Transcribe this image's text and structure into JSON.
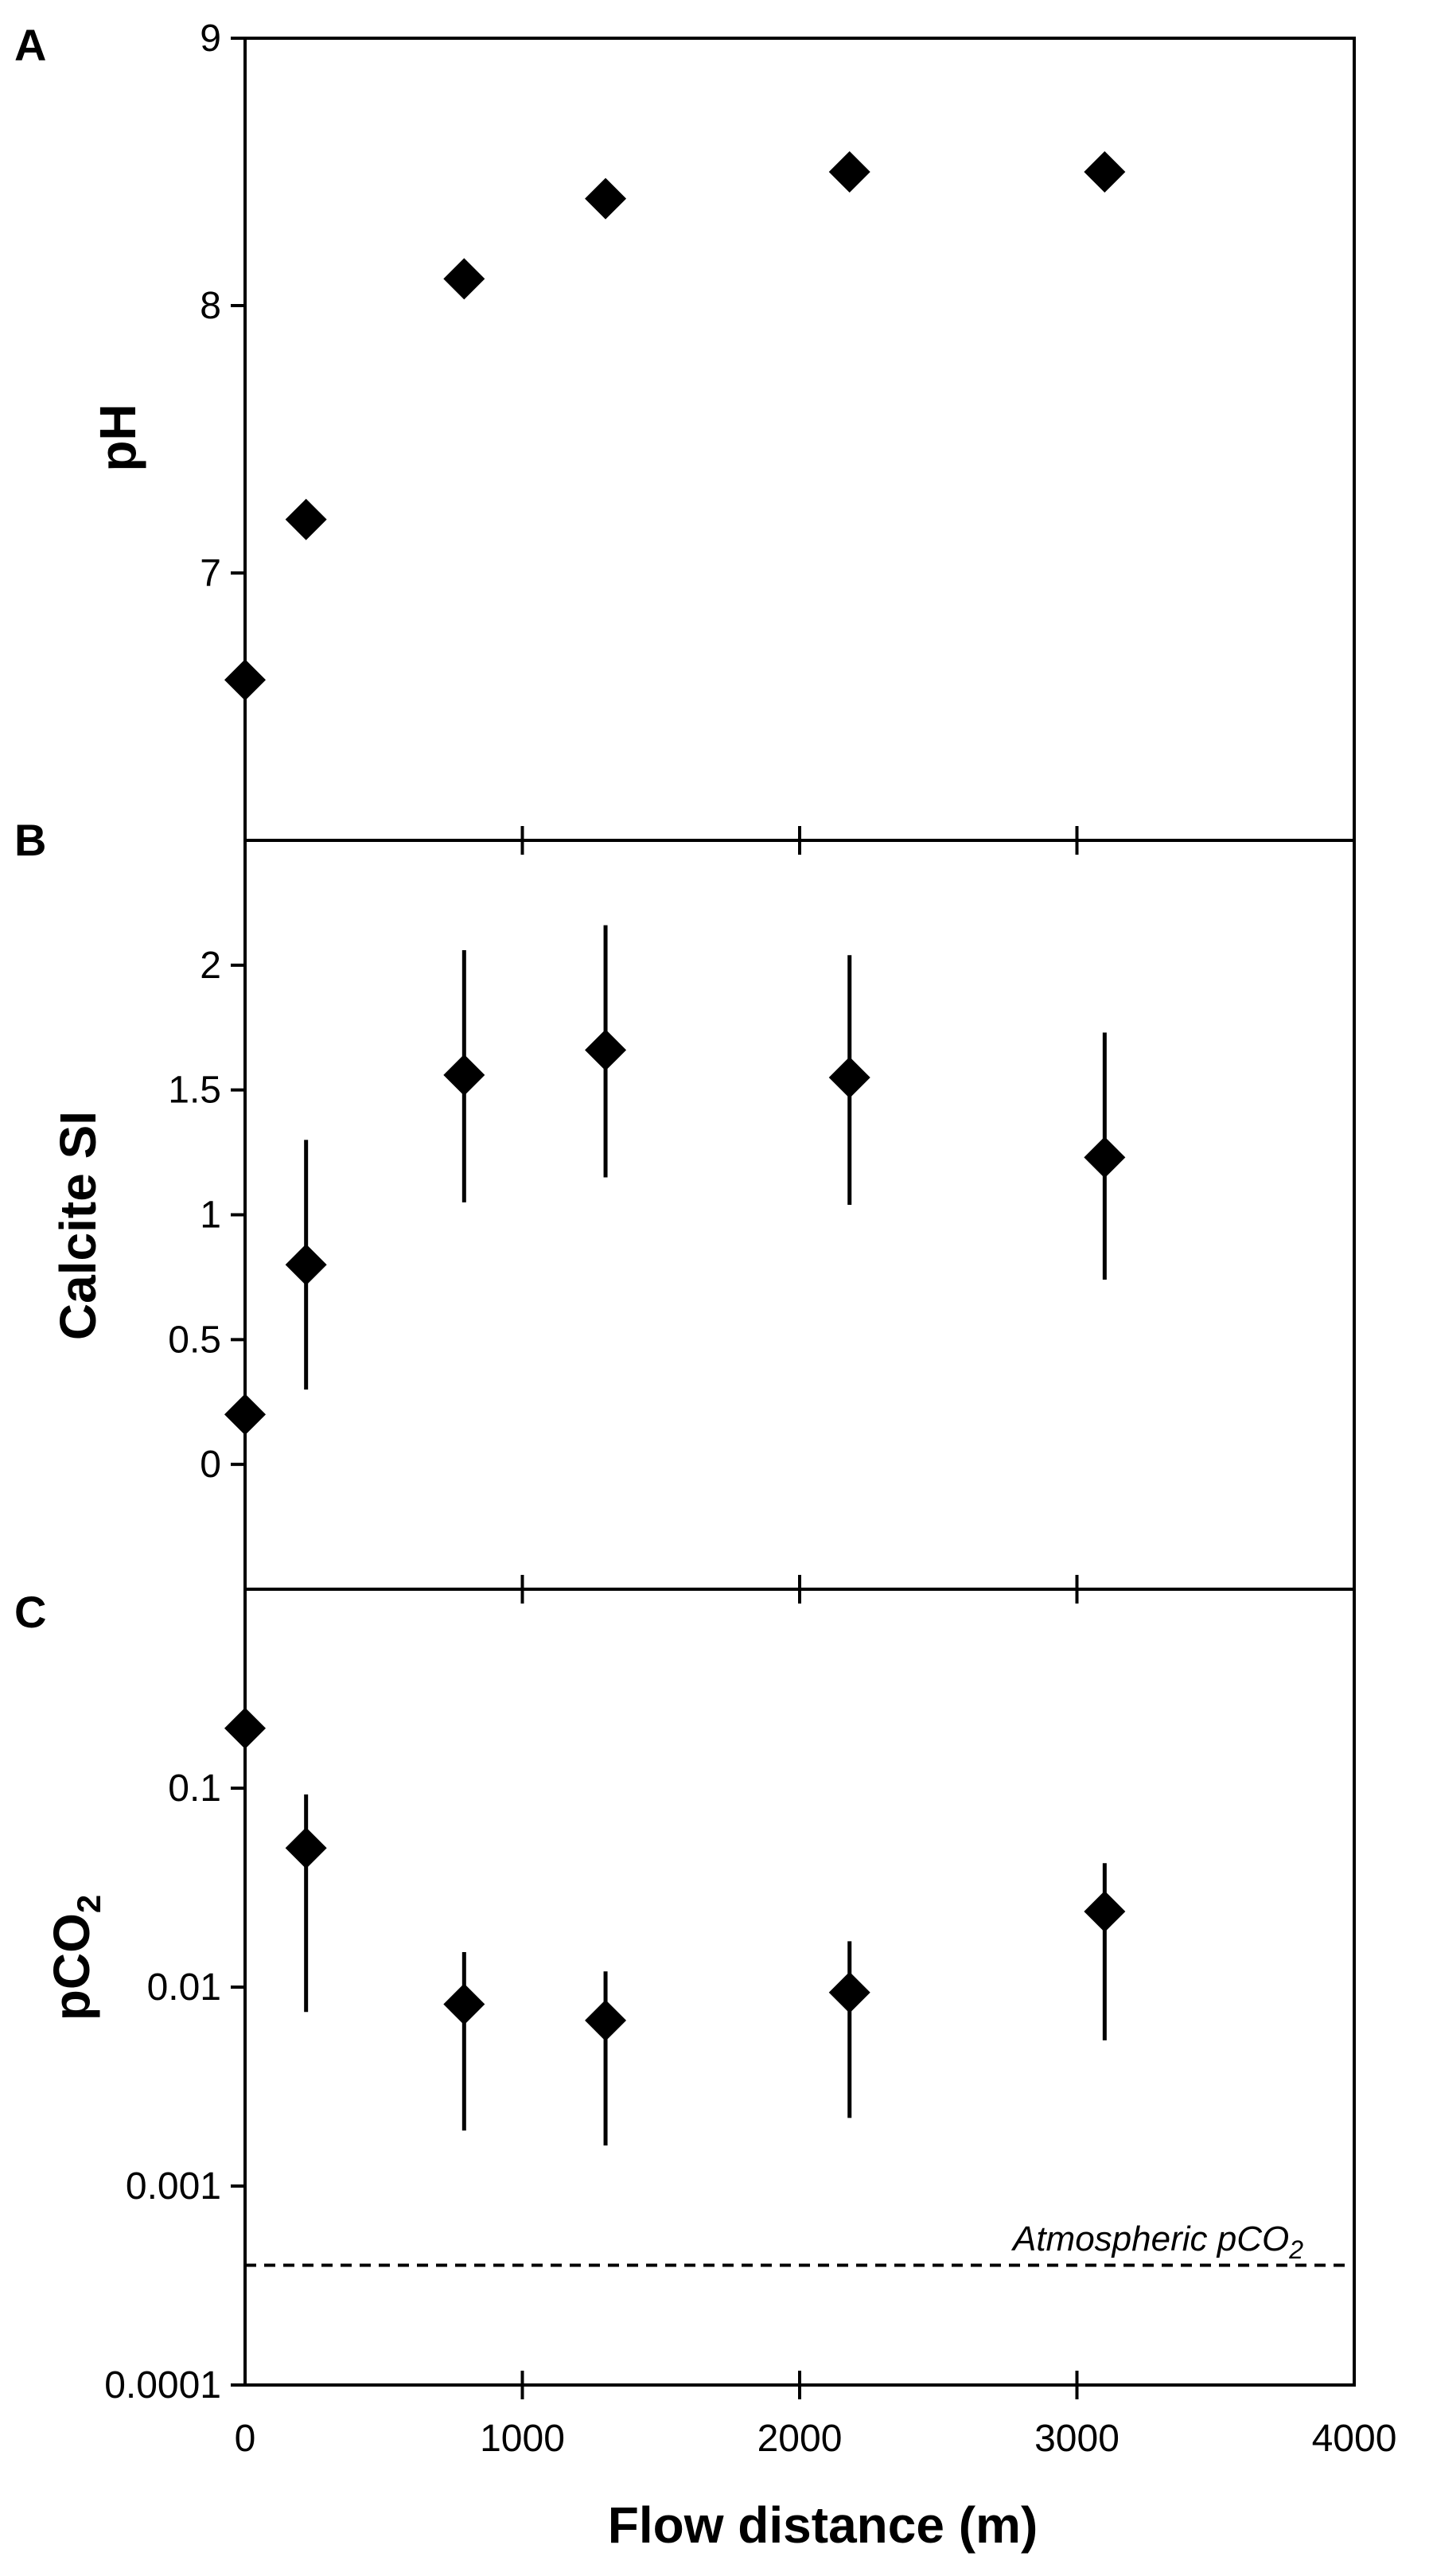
{
  "chart_data": [
    {
      "panel": "A",
      "type": "scatter",
      "ylabel": "pH",
      "ylim": [
        6,
        9
      ],
      "yticks": [
        7,
        8,
        9
      ],
      "ytick_labels": [
        "7",
        "8",
        "9"
      ],
      "x": [
        0,
        220,
        790,
        1300,
        2180,
        3100
      ],
      "y": [
        6.6,
        7.2,
        8.1,
        8.4,
        8.5,
        8.5
      ]
    },
    {
      "panel": "B",
      "type": "scatter",
      "ylabel": "Calcite SI",
      "ylim": [
        -0.5,
        2.5
      ],
      "yticks": [
        0,
        0.5,
        1,
        1.5,
        2
      ],
      "ytick_labels": [
        "0",
        "0.5",
        "1",
        "1.5",
        "2"
      ],
      "x": [
        0,
        220,
        790,
        1300,
        2180,
        3100
      ],
      "y": [
        0.2,
        0.8,
        1.56,
        1.66,
        1.55,
        1.23
      ],
      "err_low": [
        null,
        0.3,
        1.05,
        1.15,
        1.04,
        0.74
      ],
      "err_high": [
        null,
        1.3,
        2.06,
        2.16,
        2.04,
        1.73
      ]
    },
    {
      "panel": "C",
      "type": "scatter",
      "ylabel_main": "pCO",
      "ylabel_sub": "2",
      "yscale": "log",
      "ylim": [
        0.0001,
        1
      ],
      "yticks": [
        0.0001,
        0.001,
        0.01,
        0.1
      ],
      "ytick_labels": [
        "0.0001",
        "0.001",
        "0.01",
        "0.1"
      ],
      "x": [
        0,
        220,
        790,
        1300,
        2180,
        3100
      ],
      "y": [
        0.2,
        0.05,
        0.0082,
        0.0068,
        0.0094,
        0.024
      ],
      "err_low": [
        null,
        0.0075,
        0.0019,
        0.0016,
        0.0022,
        0.0054
      ],
      "err_high": [
        null,
        0.093,
        0.015,
        0.012,
        0.017,
        0.042
      ],
      "reference_line": {
        "y": 0.0004,
        "style": "dashed"
      },
      "annotation_main": "Atmospheric pCO",
      "annotation_sub": "2"
    }
  ],
  "shared_x": {
    "xlabel": "Flow distance (m)",
    "xlim": [
      0,
      4000
    ],
    "xticks": [
      0,
      1000,
      2000,
      3000,
      4000
    ],
    "xtick_labels": [
      "0",
      "1000",
      "2000",
      "3000",
      "4000"
    ]
  },
  "colors": {
    "marker": "#000000",
    "axis": "#000000",
    "background": "#ffffff"
  }
}
